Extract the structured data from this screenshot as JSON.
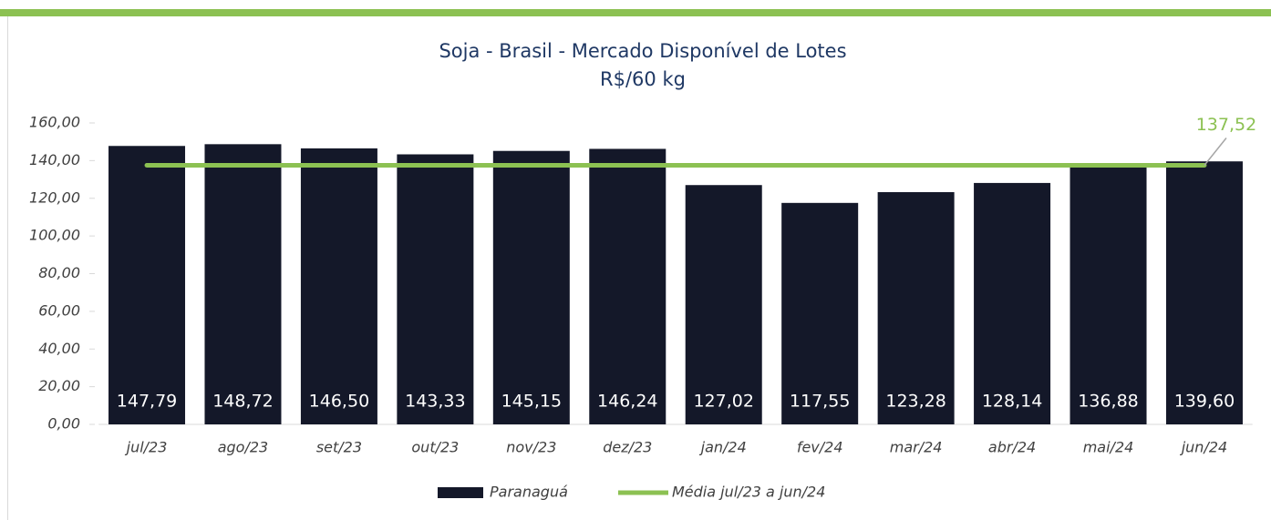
{
  "chart_data": {
    "type": "bar",
    "title": "Soja - Brasil - Mercado Disponível de Lotes",
    "subtitle": "R$/60 kg",
    "categories": [
      "jul/23",
      "ago/23",
      "set/23",
      "out/23",
      "nov/23",
      "dez/23",
      "jan/24",
      "fev/24",
      "mar/24",
      "abr/24",
      "mai/24",
      "jun/24"
    ],
    "series": [
      {
        "name": "Paranaguá",
        "type": "bar",
        "color": "#141829",
        "values": [
          147.79,
          148.72,
          146.5,
          143.33,
          145.15,
          146.24,
          127.02,
          117.55,
          123.28,
          128.14,
          136.88,
          139.6
        ],
        "value_labels": [
          "147,79",
          "148,72",
          "146,50",
          "143,33",
          "145,15",
          "146,24",
          "127,02",
          "117,55",
          "123,28",
          "128,14",
          "136,88",
          "139,60"
        ]
      },
      {
        "name": "Média jul/23 a jun/24",
        "type": "line",
        "color": "#8cc152",
        "values": [
          137.52,
          137.52,
          137.52,
          137.52,
          137.52,
          137.52,
          137.52,
          137.52,
          137.52,
          137.52,
          137.52,
          137.52
        ],
        "value_labels": [
          null,
          null,
          null,
          null,
          null,
          null,
          null,
          null,
          null,
          null,
          null,
          "137,52"
        ]
      }
    ],
    "ylim": [
      0,
      160
    ],
    "yticks": [
      {
        "value": 0,
        "label": "0,00"
      },
      {
        "value": 20,
        "label": "20,00"
      },
      {
        "value": 40,
        "label": "40,00"
      },
      {
        "value": 60,
        "label": "60,00"
      },
      {
        "value": 80,
        "label": "80,00"
      },
      {
        "value": 100,
        "label": "100,00"
      },
      {
        "value": 120,
        "label": "120,00"
      },
      {
        "value": 140,
        "label": "140,00"
      },
      {
        "value": 160,
        "label": "160,00"
      }
    ],
    "legend": "bottom"
  }
}
